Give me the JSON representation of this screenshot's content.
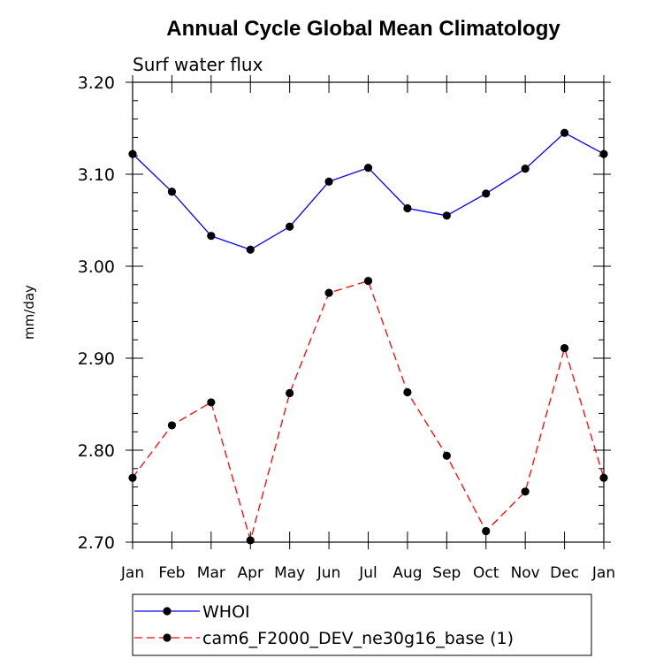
{
  "chart_data": {
    "type": "line",
    "title": "Annual Cycle Global Mean Climatology",
    "subtitle": "Surf water flux",
    "xlabel": "",
    "ylabel": "mm/day",
    "categories": [
      "Jan",
      "Feb",
      "Mar",
      "Apr",
      "May",
      "Jun",
      "Jul",
      "Aug",
      "Sep",
      "Oct",
      "Nov",
      "Dec",
      "Jan"
    ],
    "ylim": [
      2.7,
      3.2
    ],
    "yticks": [
      "2.70",
      "2.80",
      "2.90",
      "3.00",
      "3.10",
      "3.20"
    ],
    "grid": false,
    "legend_placement": "bottom",
    "series": [
      {
        "name": "WHOI",
        "color": "#0000ff",
        "line_style": "solid",
        "marker": "filled-circle",
        "values": [
          3.122,
          3.081,
          3.033,
          3.018,
          3.043,
          3.092,
          3.107,
          3.063,
          3.055,
          3.079,
          3.106,
          3.145,
          3.122
        ]
      },
      {
        "name": "cam6_F2000_DEV_ne30g16_base (1)",
        "color": "#ff0000",
        "line_style": "dashed",
        "marker": "filled-circle",
        "values": [
          2.77,
          2.827,
          2.852,
          2.702,
          2.862,
          2.971,
          2.984,
          2.863,
          2.794,
          2.712,
          2.755,
          2.911,
          2.77
        ]
      }
    ]
  }
}
